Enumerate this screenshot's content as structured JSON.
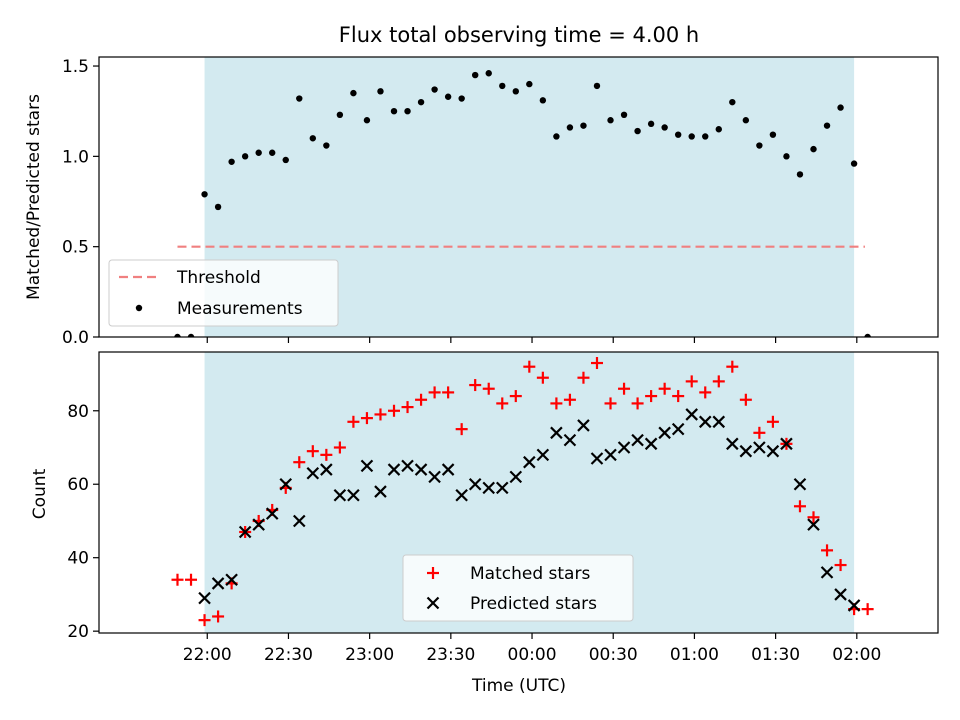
{
  "chart_data": [
    {
      "type": "scatter",
      "title": "Flux total observing time = 4.00 h",
      "ylabel": "Matched/Predicted stars",
      "xlabel": "",
      "ylim": [
        0,
        1.55
      ],
      "yticks": [
        "0.0",
        "0.5",
        "1.0",
        "1.5"
      ],
      "ytick_values": [
        0,
        0.5,
        1.0,
        1.5
      ],
      "x_unit": "minutes from 22:00 UTC",
      "xlim": [
        -40,
        270
      ],
      "shaded_span": [
        -1,
        239
      ],
      "shade_color": "#d3eaf0",
      "threshold": {
        "name": "Threshold",
        "value": 0.5,
        "x_range": [
          -11,
          243
        ],
        "color": "#f08080"
      },
      "legend": [
        "Threshold",
        "Measurements"
      ],
      "legend_position": "lower-left",
      "series": [
        {
          "name": "Measurements",
          "color": "#000000",
          "x": [
            -11,
            -6,
            -1,
            4,
            9,
            14,
            19,
            24,
            29,
            34,
            39,
            44,
            49,
            54,
            59,
            64,
            69,
            74,
            79,
            84,
            89,
            94,
            99,
            104,
            109,
            114,
            119,
            124,
            129,
            134,
            139,
            144,
            149,
            154,
            159,
            164,
            169,
            174,
            179,
            184,
            189,
            194,
            199,
            204,
            209,
            214,
            219,
            224,
            229,
            234,
            239,
            244
          ],
          "y": [
            0.0,
            0.0,
            0.79,
            0.72,
            0.97,
            1.0,
            1.02,
            1.02,
            0.98,
            1.32,
            1.1,
            1.06,
            1.23,
            1.35,
            1.2,
            1.36,
            1.25,
            1.25,
            1.3,
            1.37,
            1.33,
            1.32,
            1.45,
            1.46,
            1.39,
            1.36,
            1.4,
            1.31,
            1.11,
            1.16,
            1.17,
            1.39,
            1.2,
            1.23,
            1.14,
            1.18,
            1.16,
            1.12,
            1.11,
            1.11,
            1.15,
            1.3,
            1.2,
            1.06,
            1.12,
            1.0,
            0.9,
            1.04,
            1.17,
            1.27,
            0.96,
            0.0
          ]
        }
      ]
    },
    {
      "type": "scatter",
      "title": "",
      "ylabel": "Count",
      "xlabel": "Time (UTC)",
      "ylim": [
        19.5,
        96
      ],
      "yticks": [
        "20",
        "40",
        "60",
        "80"
      ],
      "ytick_values": [
        20,
        40,
        60,
        80
      ],
      "x_unit": "minutes from 22:00 UTC",
      "xlim": [
        -40,
        270
      ],
      "xticks": [
        "22:00",
        "22:30",
        "23:00",
        "23:30",
        "00:00",
        "00:30",
        "01:00",
        "01:30",
        "02:00"
      ],
      "xtick_values": [
        0,
        30,
        60,
        90,
        120,
        150,
        180,
        210,
        240
      ],
      "shaded_span": [
        -1,
        239
      ],
      "shade_color": "#d3eaf0",
      "legend": [
        "Matched stars",
        "Predicted stars"
      ],
      "legend_position": "lower-center",
      "series": [
        {
          "name": "Matched stars",
          "marker": "plus",
          "color": "#ff0000",
          "x": [
            -11,
            -6,
            -1,
            4,
            9,
            14,
            19,
            24,
            29,
            34,
            39,
            44,
            49,
            54,
            59,
            64,
            69,
            74,
            79,
            84,
            89,
            94,
            99,
            104,
            109,
            114,
            119,
            124,
            129,
            134,
            139,
            144,
            149,
            154,
            159,
            164,
            169,
            174,
            179,
            184,
            189,
            194,
            199,
            204,
            209,
            214,
            219,
            224,
            229,
            234,
            239,
            244
          ],
          "y": [
            34,
            34,
            23,
            24,
            33,
            47,
            50,
            53,
            59,
            66,
            69,
            68,
            70,
            77,
            78,
            79,
            80,
            81,
            83,
            85,
            85,
            75,
            87,
            86,
            82,
            84,
            92,
            89,
            82,
            83,
            89,
            93,
            82,
            86,
            82,
            84,
            86,
            84,
            88,
            85,
            88,
            92,
            83,
            74,
            77,
            71,
            54,
            51,
            42,
            38,
            26,
            26
          ]
        },
        {
          "name": "Predicted stars",
          "marker": "x",
          "color": "#000000",
          "x": [
            -1,
            4,
            9,
            14,
            19,
            24,
            29,
            34,
            39,
            44,
            49,
            54,
            59,
            64,
            69,
            74,
            79,
            84,
            89,
            94,
            99,
            104,
            109,
            114,
            119,
            124,
            129,
            134,
            139,
            144,
            149,
            154,
            159,
            164,
            169,
            174,
            179,
            184,
            189,
            194,
            199,
            204,
            209,
            214,
            219,
            224,
            229,
            234,
            239
          ],
          "y": [
            29,
            33,
            34,
            47,
            49,
            52,
            60,
            50,
            63,
            64,
            57,
            57,
            65,
            58,
            64,
            65,
            64,
            62,
            64,
            57,
            60,
            59,
            59,
            62,
            66,
            68,
            74,
            72,
            76,
            67,
            68,
            70,
            72,
            71,
            74,
            75,
            79,
            77,
            77,
            71,
            69,
            70,
            69,
            71,
            60,
            49,
            36,
            30,
            27
          ]
        }
      ]
    }
  ]
}
